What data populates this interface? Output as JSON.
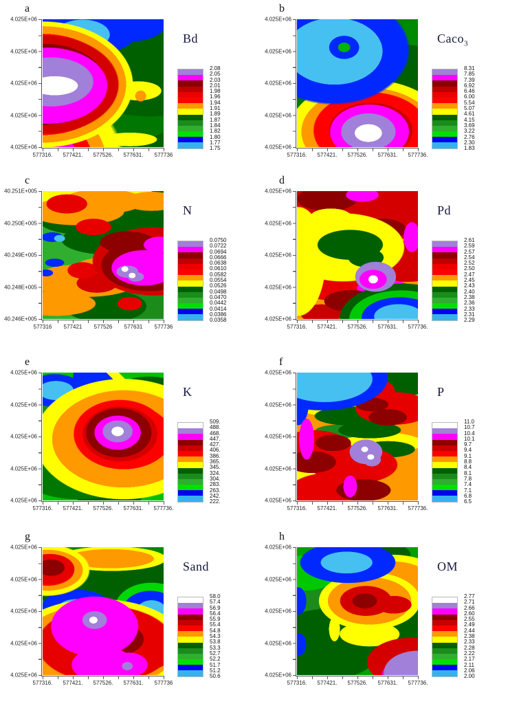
{
  "figure": {
    "description": "Eight-panel kriged contour map figure of soil properties",
    "background_color": "#FFFFFF",
    "title_color": "#16163f"
  },
  "chart_data": [
    {
      "type": "contour",
      "panel": "a",
      "title": "Bd",
      "title_sub": "",
      "x_ticks": [
        "577316.",
        "577421.",
        "577526.",
        "577631.",
        "577736"
      ],
      "y_ticks": [
        "4.025E+06",
        "4.025E+06",
        "4.025E+06",
        "4.025E+06",
        "4.025E+06"
      ],
      "levels": [
        "2.08",
        "2.05",
        "2.03",
        "2.01",
        "1.98",
        "1.96",
        "1.94",
        "1.91",
        "1.89",
        "1.87",
        "1.84",
        "1.82",
        "1.80",
        "1.77",
        "1.75"
      ],
      "band_colors": [
        "#A080D8",
        "#FF00FF",
        "#8C0000",
        "#BE0000",
        "#EE0000",
        "#FF0000",
        "#FF9900",
        "#FFFF00",
        "#006000",
        "#1B8C1B",
        "#2FAE2F",
        "#00E000",
        "#0000F0",
        "#35B2EE"
      ],
      "pattern_summary": "High white/purple/magenta lobe west-center ringed by red-orange-yellow; low blue/cyan zone along north edge; moderate greens over east half"
    },
    {
      "type": "contour",
      "panel": "b",
      "title": "Caco",
      "title_sub": "3",
      "x_ticks": [
        "577316.",
        "577421.",
        "577526.",
        "577631.",
        "577736."
      ],
      "y_ticks": [
        "4.025E+06",
        "4.025E+06",
        "4.025E+06",
        "4.025E+06",
        "4.025E+06"
      ],
      "levels": [
        "8.31",
        "7.85",
        "7.39",
        "6.92",
        "6.46",
        "6.00",
        "5.54",
        "5.07",
        "4.61",
        "4.15",
        "3.69",
        "3.22",
        "2.76",
        "2.30",
        "1.83"
      ],
      "band_colors": [
        "#A080D8",
        "#FF00FF",
        "#8C0000",
        "#BE0000",
        "#EE0000",
        "#FF0000",
        "#FF9900",
        "#FFFF00",
        "#006000",
        "#1B8C1B",
        "#2FAE2F",
        "#00E000",
        "#0000F0",
        "#35B2EE"
      ],
      "pattern_summary": "Low cyan/blue zone in northwest quadrant; high white/purple/magenta peak south-center ringed red-orange-yellow; greens elsewhere"
    },
    {
      "type": "contour",
      "panel": "c",
      "title": "N",
      "title_sub": "",
      "x_ticks": [
        "577316",
        "577421",
        "577526",
        "577631",
        "577736"
      ],
      "y_ticks": [
        "40.251E+005",
        "40.250E+005",
        "40.249E+005",
        "40.248E+005",
        "40.246E+005"
      ],
      "levels": [
        "0.0750",
        "0.0722",
        "0.0694",
        "0.0666",
        "0.0638",
        "0.0610",
        "0.0582",
        "0.0554",
        "0.0526",
        "0.0498",
        "0.0470",
        "0.0442",
        "0.0414",
        "0.0386",
        "0.0358"
      ],
      "band_colors": [
        "#A080D8",
        "#FF00FF",
        "#8C0000",
        "#BE0000",
        "#EE0000",
        "#FF0000",
        "#FF9900",
        "#FFFF00",
        "#006000",
        "#1B8C1B",
        "#2FAE2F",
        "#00E000",
        "#0000F0",
        "#35B2EE"
      ],
      "pattern_summary": "Busy NE-SW banded yellow/orange/red field with dark-green streaks; high magenta/purple zone with white spots east-center; small blue lows on west side"
    },
    {
      "type": "contour",
      "panel": "d",
      "title": "Pd",
      "title_sub": "",
      "x_ticks": [
        "577316.",
        "577421.",
        "577526.",
        "577631.",
        "577736."
      ],
      "y_ticks": [
        "4.025E+06",
        "4.025E+06",
        "4.025E+06",
        "4.025E+06",
        "4.025E+06"
      ],
      "levels": [
        "2.61",
        "2.59",
        "2.57",
        "2.54",
        "2.52",
        "2.50",
        "2.47",
        "2.45",
        "2.43",
        "2.40",
        "2.38",
        "2.36",
        "2.33",
        "2.31",
        "2.29"
      ],
      "band_colors": [
        "#A080D8",
        "#FF00FF",
        "#8C0000",
        "#BE0000",
        "#EE0000",
        "#FF0000",
        "#FF9900",
        "#FFFF00",
        "#006000",
        "#1B8C1B",
        "#2FAE2F",
        "#00E000",
        "#0000F0",
        "#35B2EE"
      ],
      "pattern_summary": "High dark-red/red across north; dark-green low pocket center with yellow halo; white/magenta spot east; cyan/blue low corner southeast"
    },
    {
      "type": "contour",
      "panel": "e",
      "title": "K",
      "title_sub": "",
      "x_ticks": [
        "577316.",
        "577421.",
        "577526.",
        "577631.",
        "577736."
      ],
      "y_ticks": [
        "4.025E+06",
        "4.025E+06",
        "4.025E+06",
        "4.025E+06",
        "4.025E+06"
      ],
      "levels": [
        "509.",
        "488.",
        "468.",
        "447.",
        "427.",
        "406.",
        "386.",
        "365.",
        "345.",
        "324.",
        "304.",
        "283.",
        "263.",
        "242.",
        "222."
      ],
      "band_colors": [
        "#FFFFFF",
        "#A080D8",
        "#FF00FF",
        "#8C0000",
        "#C80000",
        "#FF0000",
        "#FF9900",
        "#FFFF00",
        "#006000",
        "#1B8C1B",
        "#2FAE2F",
        "#00E000",
        "#0000F0",
        "#35B2EE"
      ],
      "pattern_summary": "High white/purple/magenta peak east-center ringed red-orange-yellow; blue lows at north and cyan northwest; bright-green background with dark-green patches"
    },
    {
      "type": "contour",
      "panel": "f",
      "title": "P",
      "title_sub": "",
      "x_ticks": [
        "577316.",
        "577421.",
        "577526.",
        "577631.",
        "577736."
      ],
      "y_ticks": [
        "4.025E+06",
        "4.025E+06",
        "4.025E+06",
        "4.025E+06",
        "4.025E+06"
      ],
      "levels": [
        "11.0",
        "10.7",
        "10.4",
        "10.1",
        "9.7",
        "9.4",
        "9.1",
        "8.8",
        "8.4",
        "8.1",
        "7.8",
        "7.4",
        "7.1",
        "6.8",
        "6.5"
      ],
      "band_colors": [
        "#FFFFFF",
        "#A080D8",
        "#FF00FF",
        "#8C0000",
        "#C80000",
        "#FF0000",
        "#FF9900",
        "#FFFF00",
        "#006000",
        "#1B8C1B",
        "#2FAE2F",
        "#00E000",
        "#0000F0",
        "#35B2EE"
      ],
      "pattern_summary": "Mixed red/orange field with dark-green diagonal bands and yellow streaks; cyan/blue low northwest; purple patch with white spots southeast-center; magenta sliver west"
    },
    {
      "type": "contour",
      "panel": "g",
      "title": "Sand",
      "title_sub": "",
      "x_ticks": [
        "577316.",
        "577421.",
        "577526.",
        "577631.",
        "577736"
      ],
      "y_ticks": [
        "4.025E+06",
        "4.025E+06",
        "4.025E+06",
        "4.025E+06",
        "4.025E+06"
      ],
      "levels": [
        "58.0",
        "57.4",
        "56.9",
        "56.4",
        "55.9",
        "55.4",
        "54.8",
        "54.3",
        "53.8",
        "53.3",
        "52.7",
        "52.2",
        "51.7",
        "51.2",
        "50.6"
      ],
      "band_colors": [
        "#FFFFFF",
        "#A080D8",
        "#FF00FF",
        "#8C0000",
        "#C80000",
        "#FF0000",
        "#FF9900",
        "#FFFF00",
        "#006000",
        "#1B8C1B",
        "#2FAE2F",
        "#00E000",
        "#0000F0",
        "#35B2EE"
      ],
      "pattern_summary": "Large high magenta/red zone across south with white/purple core; blue/cyan lows west-center and east; red/maroon peak northwest corner; dark greens north"
    },
    {
      "type": "contour",
      "panel": "h",
      "title": "OM",
      "title_sub": "",
      "x_ticks": [
        "577316.",
        "577421.",
        "577526.",
        "577631.",
        "577736."
      ],
      "y_ticks": [
        "4.025E+06",
        "4.025E+06",
        "4.025E+06",
        "4.025E+06",
        "4.025E+06"
      ],
      "levels": [
        "2.77",
        "2.71",
        "2.66",
        "2.60",
        "2.55",
        "2.49",
        "2.44",
        "2.38",
        "2.33",
        "2.28",
        "2.22",
        "2.17",
        "2.11",
        "2.06",
        "2.00"
      ],
      "band_colors": [
        "#FFFFFF",
        "#A080D8",
        "#FF00FF",
        "#8C0000",
        "#C80000",
        "#FF0000",
        "#FF9900",
        "#FFFF00",
        "#006000",
        "#1B8C1B",
        "#2FAE2F",
        "#00E000",
        "#0000F0",
        "#35B2EE"
      ],
      "pattern_summary": "Low blue/cyan zone north; red/orange high ridge center-east trending northeast; purple/magenta high in southeast corner; greens and dark greens west"
    }
  ]
}
